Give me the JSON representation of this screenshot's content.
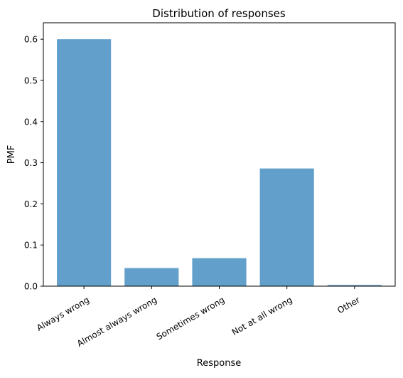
{
  "chart_data": {
    "type": "bar",
    "title": "Distribution of responses",
    "xlabel": "Response",
    "ylabel": "PMF",
    "categories": [
      "Always wrong",
      "Almost always wrong",
      "Sometimes wrong",
      "Not at all wrong",
      "Other"
    ],
    "values": [
      0.6,
      0.044,
      0.068,
      0.286,
      0.003
    ],
    "ylim": [
      0,
      0.64
    ],
    "yticks": [
      "0.0",
      "0.1",
      "0.2",
      "0.3",
      "0.4",
      "0.5",
      "0.6"
    ],
    "grid": false,
    "bar_color": "#62a0cb"
  }
}
